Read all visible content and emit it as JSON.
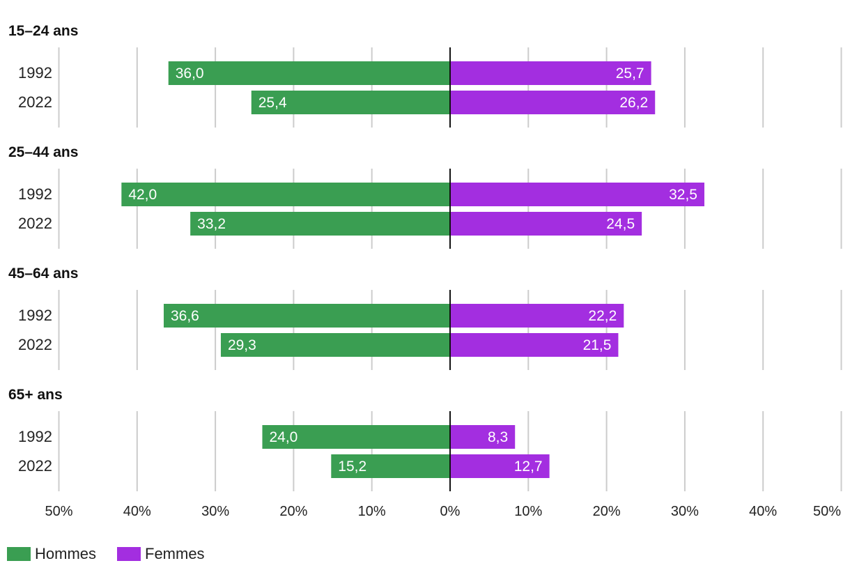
{
  "chart_data": {
    "type": "bar",
    "orientation": "horizontal-diverging",
    "colors": {
      "Hommes": "#3a9e52",
      "Femmes": "#a32ee0"
    },
    "legend": [
      "Hommes",
      "Femmes"
    ],
    "axis_range": [
      -50,
      50
    ],
    "ticks": [
      -50,
      -40,
      -30,
      -20,
      -10,
      0,
      10,
      20,
      30,
      40,
      50
    ],
    "tick_labels": [
      "50%",
      "40%",
      "30%",
      "20%",
      "10%",
      "0%",
      "10%",
      "20%",
      "30%",
      "40%",
      "50%"
    ],
    "groups": [
      {
        "title": "15–24 ans",
        "rows": [
          {
            "year": "1992",
            "hommes": 36.0,
            "femmes": 25.7,
            "hommes_label": "36,0",
            "femmes_label": "25,7"
          },
          {
            "year": "2022",
            "hommes": 25.4,
            "femmes": 26.2,
            "hommes_label": "25,4",
            "femmes_label": "26,2"
          }
        ]
      },
      {
        "title": "25–44 ans",
        "rows": [
          {
            "year": "1992",
            "hommes": 42.0,
            "femmes": 32.5,
            "hommes_label": "42,0",
            "femmes_label": "32,5"
          },
          {
            "year": "2022",
            "hommes": 33.2,
            "femmes": 24.5,
            "hommes_label": "33,2",
            "femmes_label": "24,5"
          }
        ]
      },
      {
        "title": "45–64 ans",
        "rows": [
          {
            "year": "1992",
            "hommes": 36.6,
            "femmes": 22.2,
            "hommes_label": "36,6",
            "femmes_label": "22,2"
          },
          {
            "year": "2022",
            "hommes": 29.3,
            "femmes": 21.5,
            "hommes_label": "29,3",
            "femmes_label": "21,5"
          }
        ]
      },
      {
        "title": "65+ ans",
        "rows": [
          {
            "year": "1992",
            "hommes": 24.0,
            "femmes": 8.3,
            "hommes_label": "24,0",
            "femmes_label": "8,3"
          },
          {
            "year": "2022",
            "hommes": 15.2,
            "femmes": 12.7,
            "hommes_label": "15,2",
            "femmes_label": "12,7"
          }
        ]
      }
    ]
  }
}
